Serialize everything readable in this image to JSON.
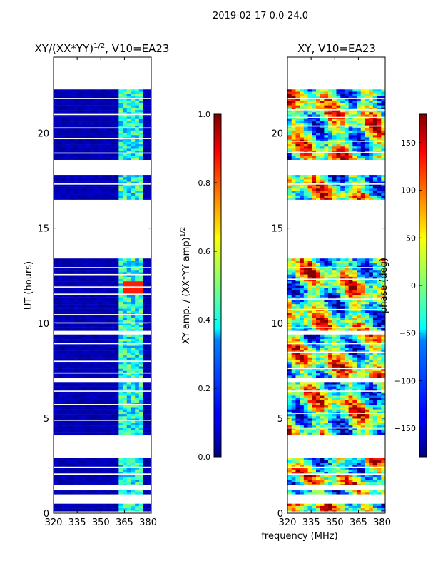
{
  "suptitle": "2019-02-17 0.0-24.0",
  "common_xlabel": "frequency (MHz)",
  "chart_data": [
    {
      "type": "heatmap",
      "title": "XY/(XX*YY)^{1/2}, V10=EA23",
      "title_main": "XY/(XX*YY)",
      "title_exp": "1/2",
      "title_tail": ", V10=EA23",
      "ylabel": "UT (hours)",
      "xlim": [
        320,
        382
      ],
      "ylim": [
        0,
        24
      ],
      "xticks": [
        320,
        335,
        350,
        365,
        380
      ],
      "yticks": [
        0,
        5,
        10,
        15,
        20
      ],
      "colorbar": {
        "label_main": "XY amp. / (XX*YY amp)",
        "label_exp": "1/2",
        "range": [
          0.0,
          1.0
        ],
        "ticks": [
          "0.0",
          "0.2",
          "0.4",
          "0.6",
          "0.8",
          "1.0"
        ],
        "tick_values": [
          0.0,
          0.2,
          0.4,
          0.6,
          0.8,
          1.0
        ],
        "colormap": "jet"
      },
      "data_bands_hours": [
        [
          0.1,
          0.5
        ],
        [
          1.0,
          1.2
        ],
        [
          1.5,
          2.0
        ],
        [
          2.1,
          2.9
        ],
        [
          4.1,
          6.9
        ],
        [
          7.1,
          9.4
        ],
        [
          9.6,
          13.4
        ],
        [
          16.5,
          17.8
        ],
        [
          18.6,
          22.3
        ]
      ],
      "bright_channel_range_mhz": [
        362,
        378
      ],
      "peak_region": {
        "hours": [
          11.5,
          12.2
        ],
        "mhz": [
          363,
          378
        ],
        "value": 0.85
      }
    },
    {
      "type": "heatmap",
      "title": "XY, V10=EA23",
      "xlim": [
        320,
        382
      ],
      "ylim": [
        0,
        24
      ],
      "xticks": [
        320,
        335,
        350,
        365,
        380
      ],
      "yticks": [
        0,
        5,
        10,
        15,
        20
      ],
      "colorbar": {
        "label": "phase (deg)",
        "range": [
          -180,
          180
        ],
        "ticks": [
          "−150",
          "−100",
          "−50",
          "0",
          "50",
          "100",
          "150"
        ],
        "tick_values": [
          -150,
          -100,
          -50,
          0,
          50,
          100,
          150
        ],
        "colormap": "jet"
      },
      "data_bands_hours": [
        [
          0.1,
          0.5
        ],
        [
          1.0,
          1.2
        ],
        [
          1.5,
          2.0
        ],
        [
          2.1,
          2.9
        ],
        [
          4.1,
          6.9
        ],
        [
          7.1,
          9.4
        ],
        [
          9.6,
          13.4
        ],
        [
          16.5,
          17.8
        ],
        [
          18.6,
          22.3
        ]
      ]
    }
  ]
}
